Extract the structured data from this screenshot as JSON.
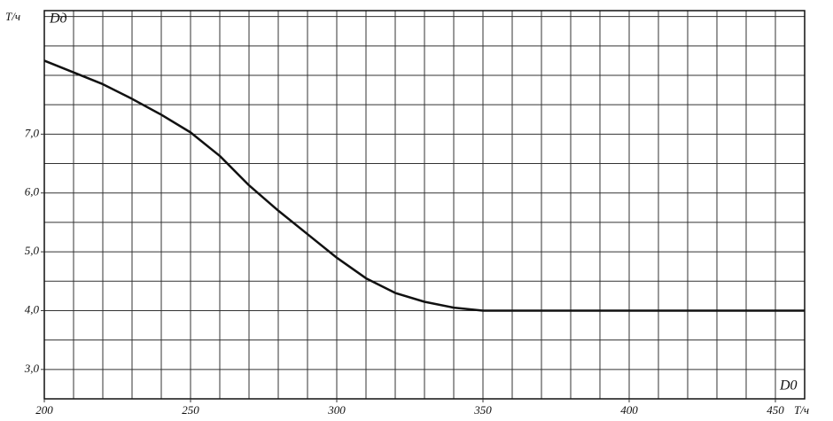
{
  "chart_data": {
    "type": "line",
    "y_unit": "Т/ч",
    "y_label": "Dд",
    "x_label": "D0",
    "x_unit": "Т/ч",
    "x": [
      200,
      210,
      220,
      230,
      240,
      250,
      260,
      270,
      280,
      290,
      300,
      310,
      320,
      330,
      340,
      350,
      375,
      400,
      430,
      460
    ],
    "series": [
      {
        "name": "Dд",
        "color": "#111111",
        "values": [
          8.25,
          8.05,
          7.85,
          7.6,
          7.33,
          7.03,
          6.63,
          6.13,
          5.7,
          5.3,
          4.9,
          4.55,
          4.3,
          4.15,
          4.05,
          4.0,
          4.0,
          4.0,
          4.0,
          4.0
        ]
      }
    ],
    "xlim": [
      200,
      460
    ],
    "ylim": [
      2.5,
      9.1
    ],
    "xticks": [
      200,
      250,
      300,
      350,
      400,
      450
    ],
    "yticks": [
      {
        "value": 3,
        "label": "3,0"
      },
      {
        "value": 4,
        "label": "4,0"
      },
      {
        "value": 5,
        "label": "5,0"
      },
      {
        "value": 6,
        "label": "6,0"
      },
      {
        "value": 7,
        "label": "7,0"
      }
    ],
    "grid": true,
    "xgrid_step": 10,
    "ygrid_step": 0.5
  }
}
